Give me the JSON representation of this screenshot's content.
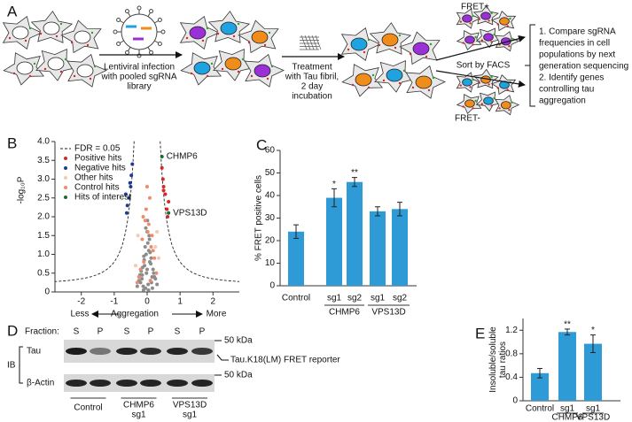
{
  "schematic": {
    "label": "A",
    "step1": [
      "Lentiviral infection",
      "with pooled sgRNA",
      "library"
    ],
    "step2": [
      "Treatment",
      "with Tau fibril,",
      "2 day",
      "incubation"
    ],
    "sort": "Sort by FACS",
    "fret_pos": "FRET+",
    "fret_neg": "FRET-",
    "outcome": [
      "1. Compare sgRNA",
      "frequencies in cell",
      "populations by next",
      "generation sequencing",
      "2. Identify genes",
      "controlling tau",
      "aggregation"
    ]
  },
  "chart_data": [
    {
      "type": "scatter",
      "label": "B",
      "ylabel": "-log₁₀P",
      "xlabel": {
        "less": "Less",
        "center": "Aggregation",
        "more": "More"
      },
      "xlim": [
        -2.8,
        2.8
      ],
      "ylim": [
        0,
        4
      ],
      "xticks": [
        -2,
        -1,
        0,
        1,
        2
      ],
      "yticks": [
        0,
        0.5,
        {
          "value": 1,
          "label": "1.0"
        },
        1.5,
        {
          "value": 2,
          "label": "2.0"
        },
        2.5,
        {
          "value": 3,
          "label": "3.0"
        },
        3.5,
        {
          "value": 4,
          "label": "4.0"
        }
      ],
      "fdr_label": "FDR = 0.05",
      "series": [
        {
          "color": "#8c8c8c",
          "x": [
            -0.05,
            0.03,
            0.1,
            -0.12,
            0.15,
            -0.2,
            0.2,
            0.0,
            -0.08,
            0.08,
            -0.15,
            0.12,
            -0.25,
            0.25,
            0.05,
            -0.03,
            0.18,
            -0.18,
            0.02,
            -0.1,
            0.3,
            -0.3,
            0.07,
            -0.06,
            0.11,
            -0.14,
            0.22,
            -0.22,
            0.0,
            0.04,
            -0.02,
            0.09,
            -0.09,
            0.13,
            -0.16,
            0.06,
            -0.04,
            0.16,
            -0.11,
            0.01
          ],
          "y": [
            0.1,
            0.2,
            0.3,
            0.15,
            0.4,
            0.25,
            0.5,
            0.6,
            0.7,
            0.8,
            0.45,
            0.9,
            0.3,
            0.35,
            1.1,
            1.0,
            0.6,
            0.55,
            1.3,
            0.95,
            0.2,
            0.15,
            1.4,
            1.2,
            0.75,
            0.65,
            0.4,
            0.45,
            1.6,
            0.05,
            0.5,
            1.05,
            0.85,
            0.25,
            0.35,
            1.5,
            1.7,
            0.1,
            0.05,
            1.9
          ]
        },
        {
          "name": "Positive hits",
          "color": "#d62728",
          "x": [
            0.6,
            0.5,
            0.48,
            0.55,
            0.45,
            0.65,
            0.62,
            0.5
          ],
          "y": [
            2.2,
            2.7,
            3.0,
            2.6,
            3.3,
            2.4,
            2.0,
            2.8
          ]
        },
        {
          "name": "Negative hits",
          "color": "#1f3a93",
          "x": [
            -0.6,
            -0.5,
            -0.48,
            -0.55,
            -0.45,
            -0.65,
            -0.62,
            -0.52
          ],
          "y": [
            2.3,
            2.8,
            3.1,
            2.5,
            3.4,
            2.6,
            2.1,
            2.9
          ]
        },
        {
          "name": "Other hits",
          "color": "#f6c9a8",
          "x": [
            0.25,
            -0.28,
            0.35,
            -0.35,
            0.3
          ],
          "y": [
            1.2,
            1.5,
            0.9,
            0.7,
            1.6
          ]
        },
        {
          "name": "Control hits",
          "color": "#f08a6c",
          "x": [
            -0.1,
            0.12,
            -0.2,
            0.05,
            0.22,
            -0.03,
            0.15,
            -0.15,
            0.08,
            -0.25,
            0.28,
            0.0,
            -0.06,
            0.18,
            -0.12,
            0.1,
            0.02,
            -0.3
          ],
          "y": [
            0.8,
            1.2,
            0.6,
            1.8,
            0.9,
            2.2,
            1.5,
            1.4,
            2.5,
            0.4,
            0.5,
            2.8,
            1.9,
            1.1,
            2.0,
            0.3,
            1.6,
            0.25
          ]
        },
        {
          "name": "Hits of interest",
          "color": "#1a6b2f",
          "x": [
            0.45,
            0.65
          ],
          "y": [
            3.6,
            2.1
          ],
          "labels": [
            "CHMP6",
            "VPS13D"
          ]
        }
      ]
    },
    {
      "type": "bar",
      "label": "C",
      "ylabel": [
        "% FRET positive cells"
      ],
      "categories": [
        "Control",
        "sg1",
        "sg2",
        "sg1",
        "sg2"
      ],
      "values": [
        24,
        39,
        46,
        33,
        34
      ],
      "errors": [
        3,
        4,
        2,
        2,
        3
      ],
      "color": "#2e9bd6",
      "ylim": [
        0,
        60
      ],
      "yticks": [
        0,
        10,
        20,
        30,
        40,
        50,
        60
      ],
      "annotations": [
        {
          "index": 1,
          "text": "*"
        },
        {
          "index": 2,
          "text": "**"
        }
      ],
      "groups": [
        {
          "label": "CHMP6",
          "categories": [
            1,
            2
          ]
        },
        {
          "label": "VPS13D",
          "categories": [
            3,
            4
          ]
        }
      ]
    },
    {
      "type": "bar",
      "label": "E",
      "ylabel": [
        "Insoluble/soluble",
        "tau ratios"
      ],
      "categories": [
        "Control",
        "sg1",
        "sg1"
      ],
      "values": [
        0.47,
        1.17,
        0.97
      ],
      "errors": [
        0.08,
        0.05,
        0.15
      ],
      "color": "#2e9bd6",
      "ylim": [
        0,
        1.4
      ],
      "yticks": [
        0,
        0.4,
        0.8,
        1.2
      ],
      "annotations": [
        {
          "index": 1,
          "text": "**"
        },
        {
          "index": 2,
          "text": "*"
        }
      ],
      "groups": [
        {
          "label": "CHMP6",
          "categories": [
            1
          ]
        },
        {
          "label": "VPS13D",
          "categories": [
            2
          ]
        }
      ]
    }
  ],
  "blot": {
    "label": "D",
    "fraction_label": "Fraction:",
    "fractions": [
      "S",
      "P",
      "S",
      "P",
      "S",
      "P"
    ],
    "rows": [
      {
        "name": "Tau",
        "marker": "50 kDa"
      },
      {
        "name": "β-Actin",
        "marker": "50 kDa"
      }
    ],
    "reporter": "Tau.K18(LM) FRET reporter",
    "ib": "IB",
    "groups": [
      [
        "Control"
      ],
      [
        "CHMP6",
        "sg1"
      ],
      [
        "VPS13D",
        "sg1"
      ]
    ]
  }
}
